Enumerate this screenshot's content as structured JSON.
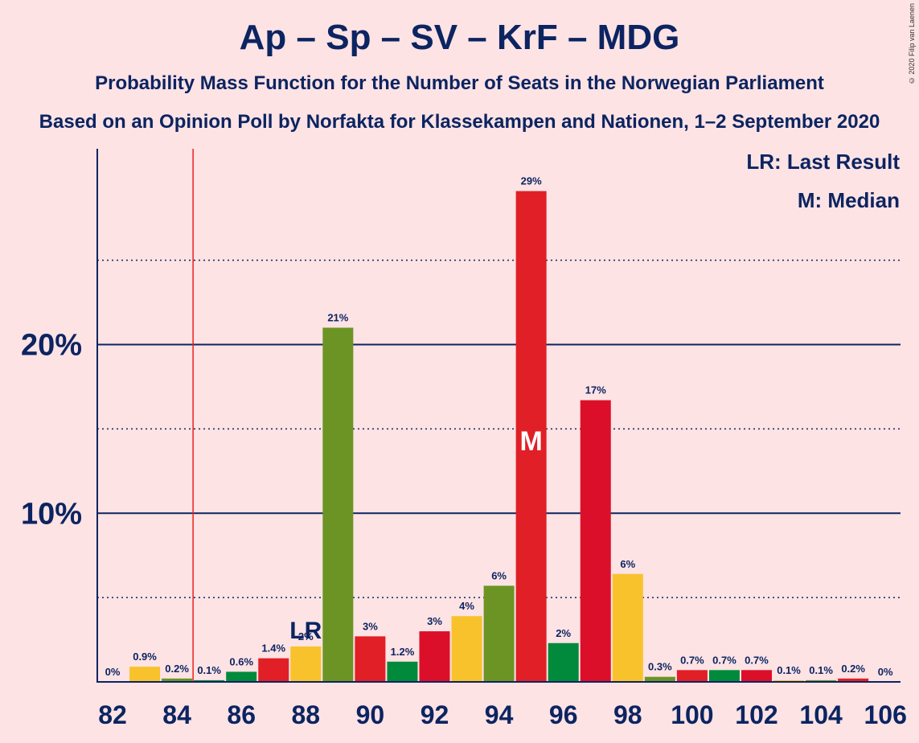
{
  "title": "Ap – Sp – SV – KrF – MDG",
  "subtitle": "Probability Mass Function for the Number of Seats in the Norwegian Parliament",
  "subtitle2": "Based on an Opinion Poll by Norfakta for Klassekampen and Nationen, 1–2 September 2020",
  "copyright": "© 2020 Filip van Laenen",
  "legend": {
    "last_result": "LR: Last Result",
    "median": "M: Median"
  },
  "colors": {
    "background": "#fde3e4",
    "axis": "#0c2461",
    "last_result_line": "#e8211f",
    "cycle": [
      "#f8c22c",
      "#028a3c",
      "#e11f26",
      "#6b9424",
      "#dc0f2a"
    ]
  },
  "chart_data": {
    "type": "bar",
    "x": [
      82,
      83,
      84,
      85,
      86,
      87,
      88,
      89,
      90,
      91,
      92,
      93,
      94,
      95,
      96,
      97,
      98,
      99,
      100,
      101,
      102,
      103,
      104,
      105,
      106
    ],
    "values": [
      0,
      0.9,
      0.2,
      0.1,
      0.6,
      1.4,
      2.1,
      21.0,
      2.7,
      1.2,
      3.0,
      3.9,
      5.7,
      29.1,
      2.3,
      16.7,
      6.4,
      0.3,
      0.7,
      0.7,
      0.7,
      0.1,
      0.1,
      0.2,
      0
    ],
    "labels": [
      "0%",
      "0.9%",
      "0.2%",
      "0.1%",
      "0.6%",
      "1.4%",
      "2%",
      "21%",
      "3%",
      "1.2%",
      "3%",
      "4%",
      "6%",
      "29%",
      "2%",
      "17%",
      "6%",
      "0.3%",
      "0.7%",
      "0.7%",
      "0.7%",
      "0.1%",
      "0.1%",
      "0.2%",
      "0%"
    ],
    "colors": [
      "#f8c22c",
      "#f8c22c",
      "#6b9424",
      "#028a3c",
      "#028a3c",
      "#e11f26",
      "#f8c22c",
      "#6b9424",
      "#e11f26",
      "#028a3c",
      "#dc0f2a",
      "#f8c22c",
      "#6b9424",
      "#e11f26",
      "#028a3c",
      "#dc0f2a",
      "#f8c22c",
      "#6b9424",
      "#e11f26",
      "#028a3c",
      "#dc0f2a",
      "#f8c22c",
      "#6b9424",
      "#e11f26",
      "#028a3c"
    ],
    "xticks": [
      82,
      84,
      86,
      88,
      90,
      92,
      94,
      96,
      98,
      100,
      102,
      104,
      106
    ],
    "yticks": [
      {
        "value": 10,
        "label": "10%"
      },
      {
        "value": 20,
        "label": "20%"
      }
    ],
    "minor_gridlines": [
      5,
      15,
      25
    ],
    "ylim": [
      0,
      31.7
    ],
    "last_result": {
      "seats": 88,
      "label": "LR",
      "line_between": [
        84,
        85
      ]
    },
    "median": {
      "seats": 95,
      "label": "M"
    }
  }
}
